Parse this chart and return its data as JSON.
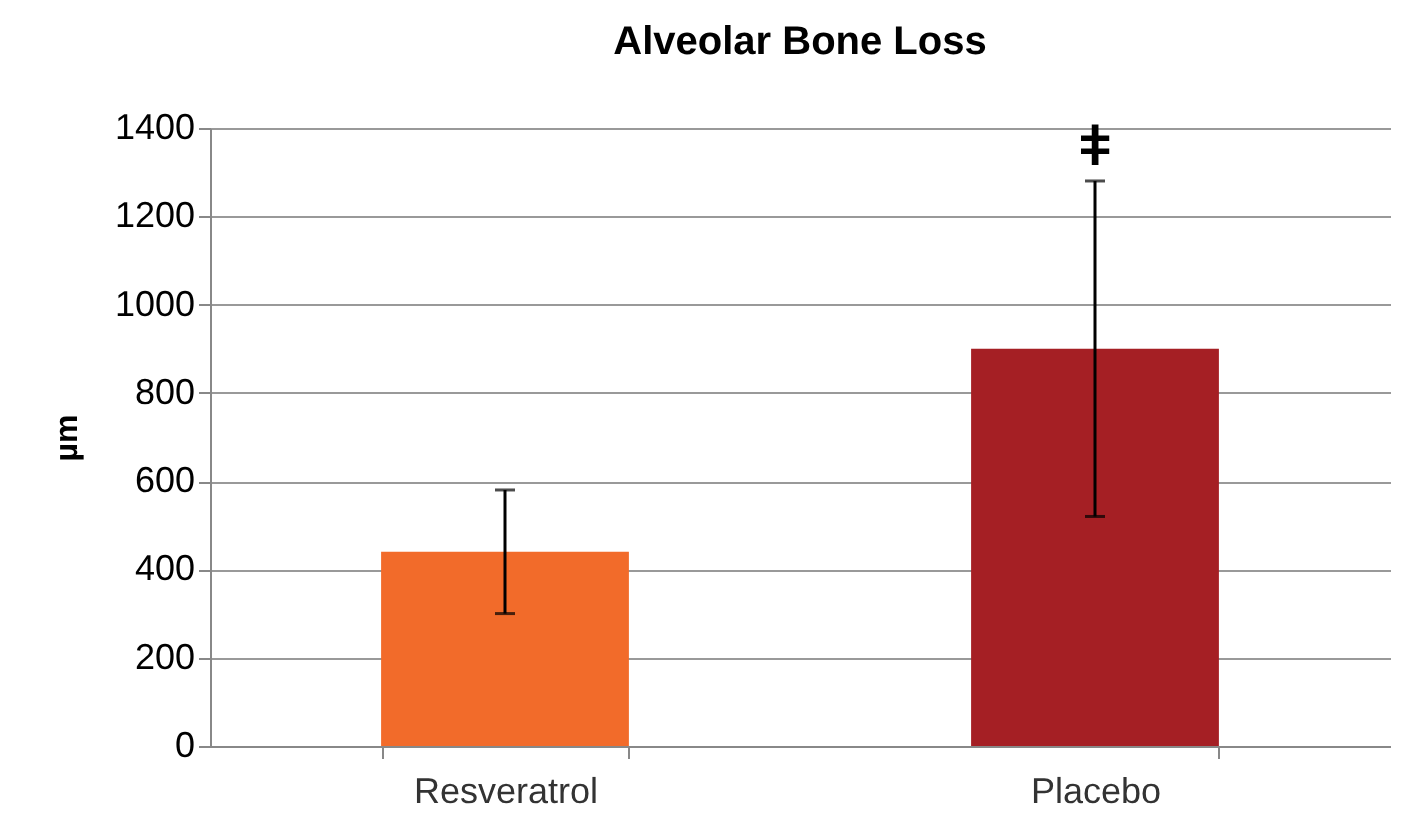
{
  "chart_data": {
    "type": "bar",
    "title": "Alveolar Bone Loss",
    "ylabel": "µm",
    "categories": [
      "Resveratrol",
      "Placebo"
    ],
    "values": [
      440,
      900
    ],
    "colors": [
      "#f26b2a",
      "#a51f24"
    ],
    "errors": [
      140,
      380
    ],
    "ylim": [
      0,
      1400
    ],
    "yticks": [
      0,
      200,
      400,
      600,
      800,
      1000,
      1200,
      1400
    ],
    "grid": "y",
    "annotations": [
      "ǂ"
    ]
  }
}
